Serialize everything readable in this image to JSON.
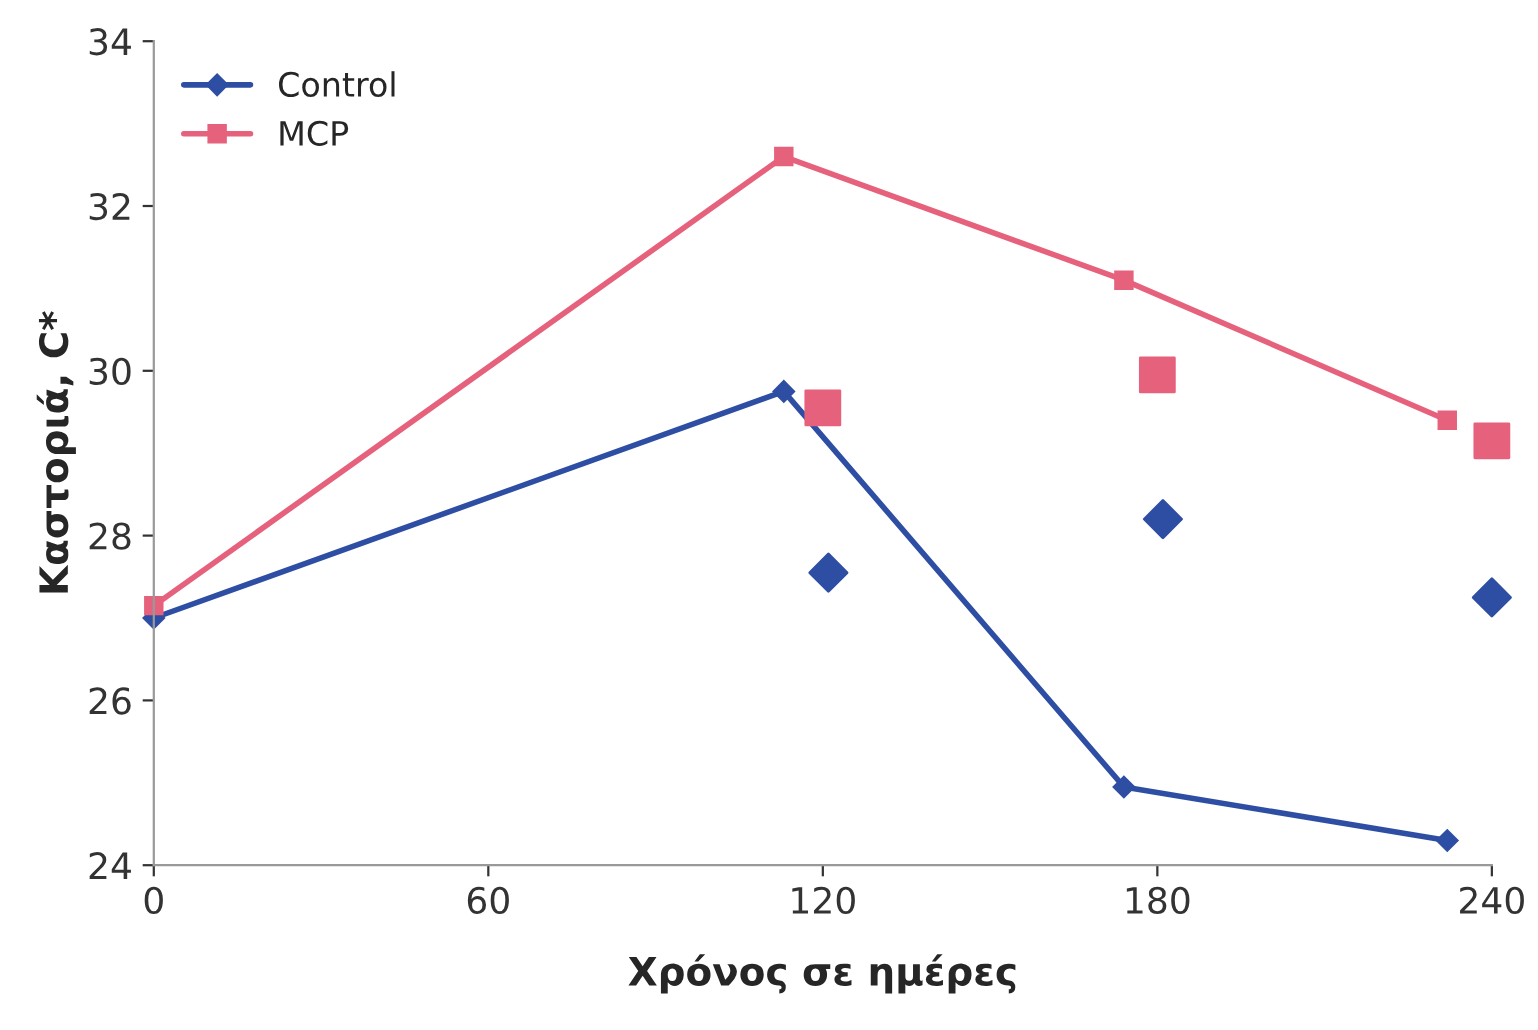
{
  "chart_data": {
    "type": "line",
    "xlabel": "Χρόνος σε ημέρες",
    "ylabel": "Καστοριά, C*",
    "xlim": [
      0,
      240
    ],
    "xticks": [
      0,
      60,
      120,
      180,
      240
    ],
    "ylim": [
      24,
      34
    ],
    "yticks": [
      24,
      26,
      28,
      30,
      32,
      34
    ],
    "grid": false,
    "legend": "top left",
    "series": [
      {
        "name": "Control",
        "type": "line",
        "marker": "diamond",
        "color": "#2d4ea3",
        "x": [
          0,
          113,
          174,
          232
        ],
        "values": [
          27.0,
          29.75,
          24.95,
          24.3
        ]
      },
      {
        "name": "MCP",
        "type": "line",
        "marker": "square",
        "color": "#e6627c",
        "x": [
          0,
          113,
          174,
          232
        ],
        "values": [
          27.15,
          32.6,
          31.1,
          29.4
        ]
      },
      {
        "type": "scatter",
        "marker": "diamond",
        "color": "#2d4ea3",
        "x": [
          121,
          181,
          240
        ],
        "values": [
          27.55,
          28.2,
          27.25
        ]
      },
      {
        "type": "scatter",
        "marker": "square",
        "color": "#e6627c",
        "x": [
          120,
          180,
          240
        ],
        "values": [
          29.55,
          29.95,
          29.15
        ]
      }
    ]
  }
}
